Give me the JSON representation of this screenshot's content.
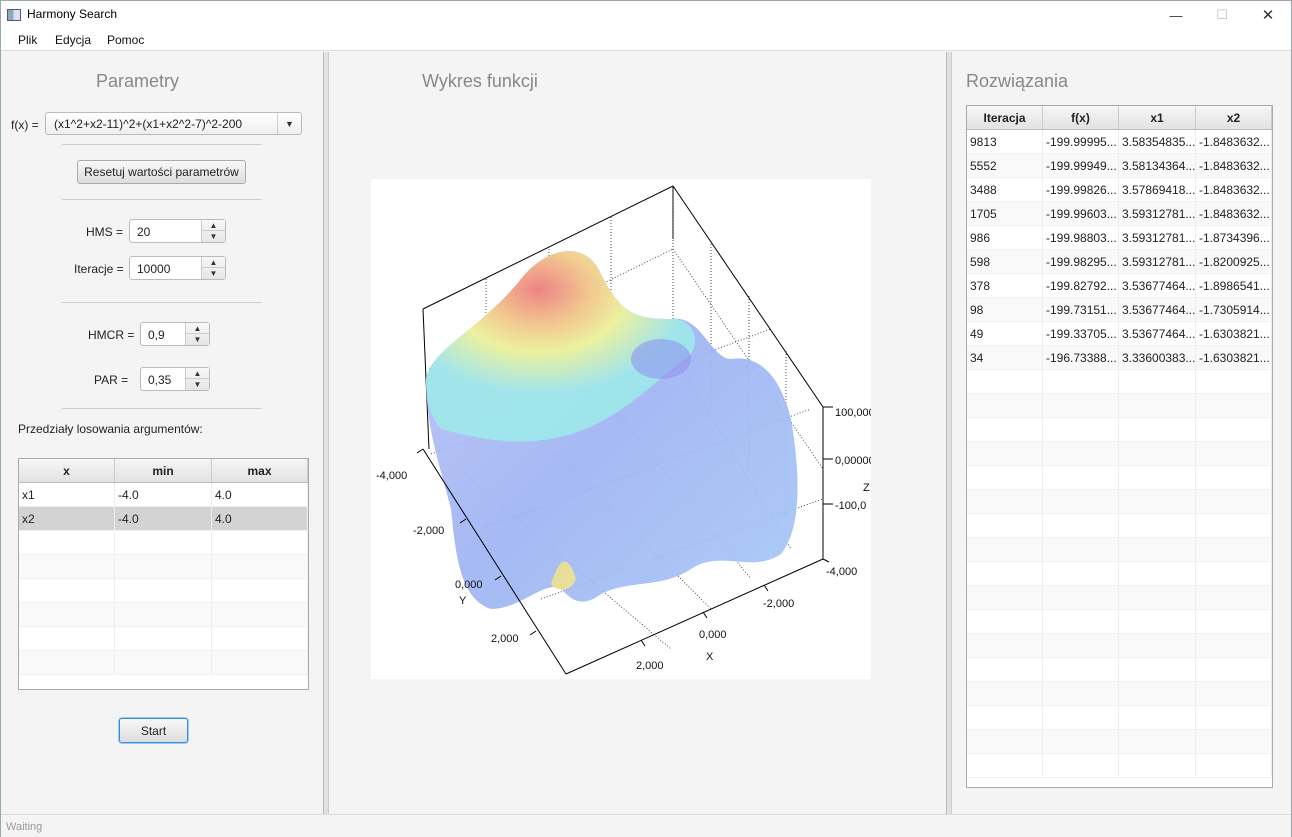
{
  "window": {
    "title": "Harmony Search"
  },
  "menu": {
    "items": [
      "Plik",
      "Edycja",
      "Pomoc"
    ]
  },
  "left": {
    "title": "Parametry",
    "fx_label": "f(x) =",
    "fx_value": "(x1^2+x2-11)^2+(x1+x2^2-7)^2-200",
    "reset_button": "Resetuj wartości parametrów",
    "hms_label": "HMS =",
    "hms_value": "20",
    "iter_label": "Iteracje =",
    "iter_value": "10000",
    "hmcr_label": "HMCR =",
    "hmcr_value": "0,9",
    "par_label": "PAR =",
    "par_value": "0,35",
    "ranges_label": "Przedziały losowania argumentów:",
    "ranges_table": {
      "headers": [
        "x",
        "min",
        "max"
      ],
      "rows": [
        [
          "x1",
          "-4.0",
          "4.0"
        ],
        [
          "x2",
          "-4.0",
          "4.0"
        ]
      ]
    },
    "start_button": "Start"
  },
  "middle": {
    "title": "Wykres funkcji",
    "plot": {
      "x_axis_label": "X",
      "y_axis_label": "Y",
      "z_axis_label": "Z",
      "x_ticks": [
        "-4,000",
        "-2,000",
        "0,000",
        "2,000"
      ],
      "y_ticks": [
        "-4,000",
        "-2,000",
        "0,000",
        "2,000"
      ],
      "z_ticks": [
        "100,000",
        "0,00000",
        "-100,0"
      ]
    }
  },
  "right": {
    "title": "Rozwiązania",
    "table": {
      "headers": [
        "Iteracja",
        "f(x)",
        "x1",
        "x2"
      ],
      "rows": [
        [
          "9813",
          "-199.99995...",
          "3.58354835...",
          "-1.8483632..."
        ],
        [
          "5552",
          "-199.99949...",
          "3.58134364...",
          "-1.8483632..."
        ],
        [
          "3488",
          "-199.99826...",
          "3.57869418...",
          "-1.8483632..."
        ],
        [
          "1705",
          "-199.99603...",
          "3.59312781...",
          "-1.8483632..."
        ],
        [
          "986",
          "-199.98803...",
          "3.59312781...",
          "-1.8734396..."
        ],
        [
          "598",
          "-199.98295...",
          "3.59312781...",
          "-1.8200925..."
        ],
        [
          "378",
          "-199.82792...",
          "3.53677464...",
          "-1.8986541..."
        ],
        [
          "98",
          "-199.73151...",
          "3.53677464...",
          "-1.7305914..."
        ],
        [
          "49",
          "-199.33705...",
          "3.53677464...",
          "-1.6303821..."
        ],
        [
          "34",
          "-196.73388...",
          "3.33600383...",
          "-1.6303821..."
        ]
      ]
    }
  },
  "status": {
    "text": "Waiting"
  }
}
